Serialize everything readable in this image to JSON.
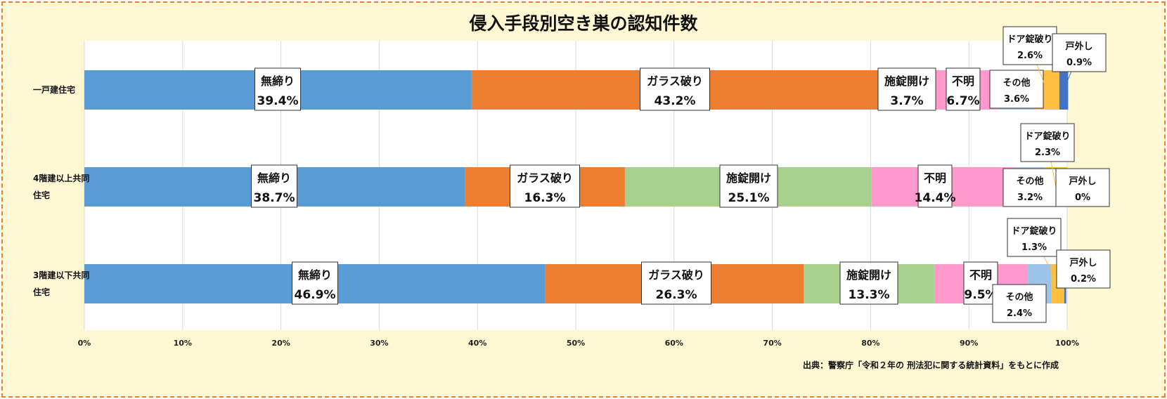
{
  "chart_data": {
    "type": "bar",
    "orientation": "horizontal",
    "stacked": "percent",
    "title": "侵入手段別空き巣の認知件数",
    "categories": [
      "一戸建住宅",
      "4階建以上共同住宅",
      "3階建以下共同住宅"
    ],
    "series": [
      {
        "name": "無締り",
        "color": "#5B9BD5",
        "values": [
          39.4,
          38.7,
          46.9
        ]
      },
      {
        "name": "ガラス破り",
        "color": "#ED7D31",
        "values": [
          43.2,
          16.3,
          26.3
        ]
      },
      {
        "name": "施錠開け",
        "color": "#A9D18E",
        "values": [
          3.7,
          25.1,
          13.3
        ]
      },
      {
        "name": "不明",
        "color": "#FF99CC",
        "values": [
          6.7,
          14.4,
          9.5
        ]
      },
      {
        "name": "その他",
        "color": "#9DC3E6",
        "values": [
          3.6,
          3.2,
          2.4
        ]
      },
      {
        "name": "ドア錠破り",
        "color": "#FFBF3F",
        "values": [
          2.6,
          2.3,
          1.3
        ]
      },
      {
        "name": "戸外し",
        "color": "#4472C4",
        "values": [
          0.9,
          0,
          0.2
        ]
      }
    ],
    "xlim": [
      0,
      100
    ],
    "xticks": [
      "0%",
      "10%",
      "20%",
      "30%",
      "40%",
      "50%",
      "60%",
      "70%",
      "80%",
      "90%",
      "100%"
    ],
    "grid": true,
    "legend": "none",
    "source": "出典：警察庁「令和２年の 刑法犯に関する統計資料」をもとに作成"
  }
}
